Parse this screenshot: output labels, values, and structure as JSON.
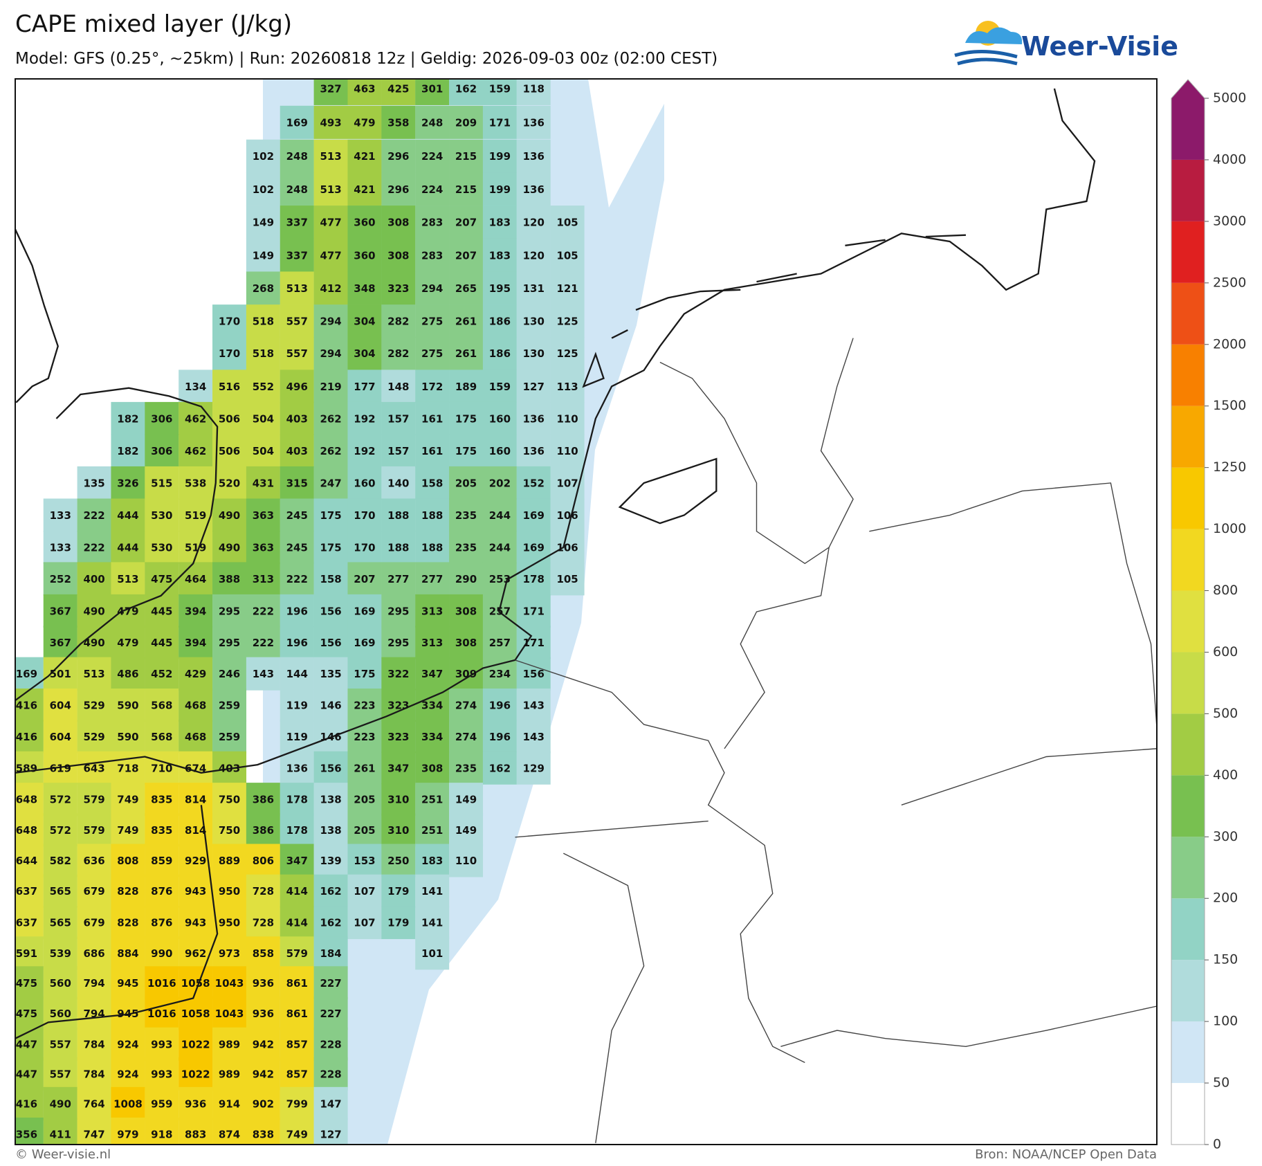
{
  "header": {
    "title": "CAPE mixed layer (J/kg)",
    "subtitle": "Model: GFS (0.25°, ~25km)  |  Run: 20260818 12z  |  Geldig: 2026-09-03 00z (02:00 CEST)",
    "logo": "Weer-Visie"
  },
  "footer": {
    "left": "© Weer-visie.nl",
    "right": "Bron: NOAA/NCEP Open Data"
  },
  "colorbar": {
    "ticks": [
      0,
      50,
      100,
      150,
      200,
      300,
      400,
      500,
      600,
      800,
      1000,
      1250,
      1500,
      2000,
      2500,
      3000,
      4000,
      5000
    ],
    "colors": [
      "#ffffff",
      "#d0e6f5",
      "#b0dcdc",
      "#92d3c5",
      "#88cc88",
      "#78c050",
      "#a2cc44",
      "#c8dc48",
      "#e0e040",
      "#f2d820",
      "#f8c800",
      "#f8a800",
      "#f88000",
      "#ee5016",
      "#e02020",
      "#b81c40",
      "#8c1a6a"
    ]
  },
  "grid": {
    "rows": [
      [
        null,
        null,
        null,
        null,
        null,
        null,
        null,
        null,
        null,
        327,
        463,
        425,
        301,
        162,
        159,
        118
      ],
      [
        null,
        null,
        null,
        null,
        null,
        null,
        null,
        null,
        169,
        493,
        479,
        358,
        248,
        209,
        171,
        136
      ],
      [
        null,
        null,
        null,
        null,
        null,
        null,
        null,
        102,
        248,
        513,
        421,
        296,
        224,
        215,
        199,
        136
      ],
      [
        null,
        null,
        null,
        null,
        null,
        null,
        null,
        102,
        248,
        513,
        421,
        296,
        224,
        215,
        199,
        136
      ],
      [
        null,
        null,
        null,
        null,
        null,
        null,
        null,
        149,
        337,
        477,
        360,
        308,
        283,
        207,
        183,
        120,
        105
      ],
      [
        null,
        null,
        null,
        null,
        null,
        null,
        null,
        149,
        337,
        477,
        360,
        308,
        283,
        207,
        183,
        120,
        105
      ],
      [
        null,
        null,
        null,
        null,
        null,
        null,
        null,
        268,
        513,
        412,
        348,
        323,
        294,
        265,
        195,
        131,
        121
      ],
      [
        null,
        null,
        null,
        null,
        null,
        null,
        170,
        518,
        557,
        294,
        304,
        282,
        275,
        261,
        186,
        130,
        125
      ],
      [
        null,
        null,
        null,
        null,
        null,
        null,
        170,
        518,
        557,
        294,
        304,
        282,
        275,
        261,
        186,
        130,
        125
      ],
      [
        null,
        null,
        null,
        null,
        null,
        134,
        516,
        552,
        496,
        219,
        177,
        148,
        172,
        189,
        159,
        127,
        113
      ],
      [
        null,
        null,
        null,
        182,
        306,
        462,
        506,
        504,
        403,
        262,
        192,
        157,
        161,
        175,
        160,
        136,
        110
      ],
      [
        null,
        null,
        null,
        182,
        306,
        462,
        506,
        504,
        403,
        262,
        192,
        157,
        161,
        175,
        160,
        136,
        110
      ],
      [
        null,
        null,
        135,
        326,
        515,
        538,
        520,
        431,
        315,
        247,
        160,
        140,
        158,
        205,
        202,
        152,
        107
      ],
      [
        null,
        133,
        222,
        444,
        530,
        519,
        490,
        363,
        245,
        175,
        170,
        188,
        188,
        235,
        244,
        169,
        106
      ],
      [
        null,
        133,
        222,
        444,
        530,
        519,
        490,
        363,
        245,
        175,
        170,
        188,
        188,
        235,
        244,
        169,
        106
      ],
      [
        null,
        252,
        400,
        513,
        475,
        464,
        388,
        313,
        222,
        158,
        207,
        277,
        277,
        290,
        253,
        178,
        105
      ],
      [
        null,
        367,
        490,
        479,
        445,
        394,
        295,
        222,
        196,
        156,
        169,
        295,
        313,
        308,
        257,
        171
      ],
      [
        null,
        367,
        490,
        479,
        445,
        394,
        295,
        222,
        196,
        156,
        169,
        295,
        313,
        308,
        257,
        171
      ],
      [
        169,
        501,
        513,
        486,
        452,
        429,
        246,
        143,
        144,
        135,
        175,
        322,
        347,
        309,
        234,
        156
      ],
      [
        416,
        604,
        529,
        590,
        568,
        468,
        259,
        null,
        119,
        146,
        223,
        323,
        334,
        274,
        196,
        143
      ],
      [
        416,
        604,
        529,
        590,
        568,
        468,
        259,
        null,
        119,
        146,
        223,
        323,
        334,
        274,
        196,
        143
      ],
      [
        589,
        619,
        643,
        718,
        710,
        674,
        403,
        null,
        136,
        156,
        261,
        347,
        308,
        235,
        162,
        129
      ],
      [
        648,
        572,
        579,
        749,
        835,
        814,
        750,
        386,
        178,
        138,
        205,
        310,
        251,
        149
      ],
      [
        648,
        572,
        579,
        749,
        835,
        814,
        750,
        386,
        178,
        138,
        205,
        310,
        251,
        149
      ],
      [
        644,
        582,
        636,
        808,
        859,
        929,
        889,
        806,
        347,
        139,
        153,
        250,
        183,
        110
      ],
      [
        637,
        565,
        679,
        828,
        876,
        943,
        950,
        728,
        414,
        162,
        107,
        179,
        141
      ],
      [
        637,
        565,
        679,
        828,
        876,
        943,
        950,
        728,
        414,
        162,
        107,
        179,
        141
      ],
      [
        591,
        539,
        686,
        884,
        990,
        962,
        973,
        858,
        579,
        184,
        null,
        null,
        101
      ],
      [
        475,
        560,
        794,
        945,
        1016,
        1058,
        1043,
        936,
        861,
        227
      ],
      [
        475,
        560,
        794,
        945,
        1016,
        1058,
        1043,
        936,
        861,
        227
      ],
      [
        447,
        557,
        784,
        924,
        993,
        1022,
        989,
        942,
        857,
        228
      ],
      [
        447,
        557,
        784,
        924,
        993,
        1022,
        989,
        942,
        857,
        228
      ],
      [
        416,
        490,
        764,
        1008,
        959,
        936,
        914,
        902,
        799,
        147
      ],
      [
        356,
        411,
        747,
        979,
        918,
        883,
        874,
        838,
        749,
        127
      ]
    ]
  }
}
